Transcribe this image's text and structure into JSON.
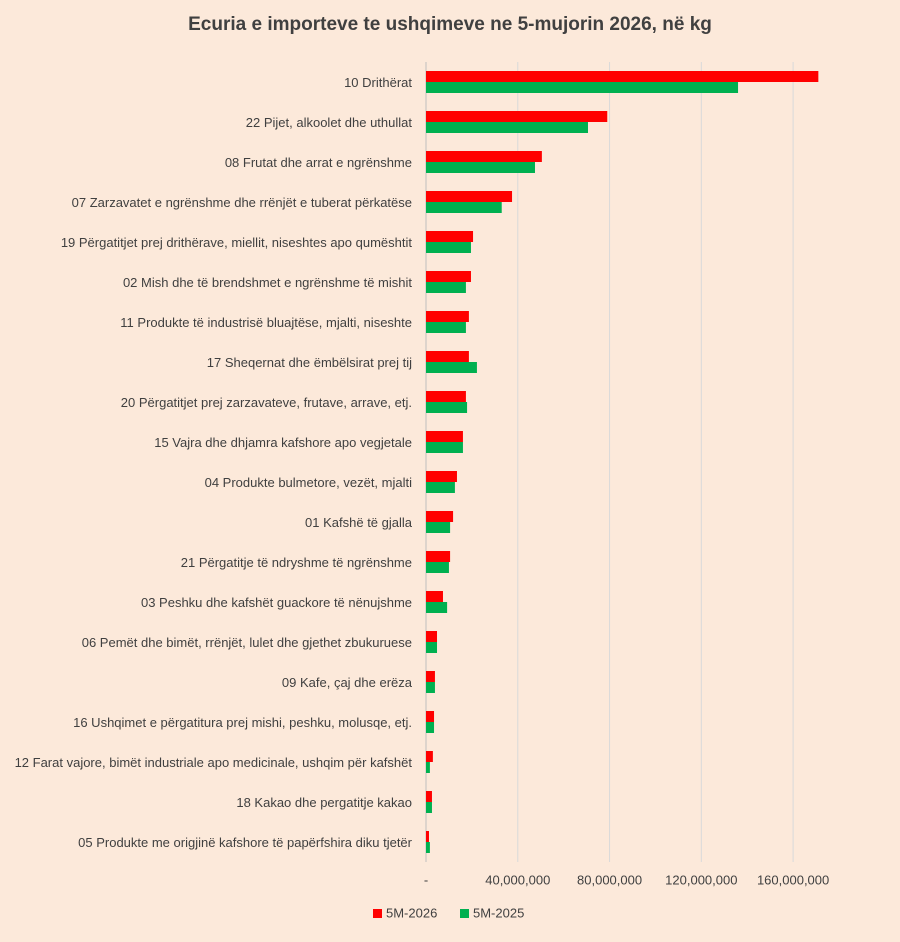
{
  "chart_data": {
    "type": "hbar",
    "title": "Ecuria e importeve te ushqimeve ne 5-mujorin 2026, në kg",
    "categories": [
      "10 Drithërat",
      "22 Pijet, alkoolet dhe uthullat",
      "08 Frutat dhe arrat e ngrënshme",
      "07 Zarzavatet e ngrënshme dhe rrënjët e tuberat përkatëse",
      "19 Përgatitjet prej drithërave, miellit, niseshtes apo qumështit",
      "02 Mish dhe të brendshmet e ngrënshme të mishit",
      "11 Produkte të industrisë bluajtëse, mjalti, niseshte",
      "17 Sheqernat dhe ëmbëlsirat prej tij",
      "20 Përgatitjet prej zarzavateve, frutave, arrave, etj.",
      "15 Vajra dhe dhjamra kafshore apo vegjetale",
      "04 Produkte bulmetore, vezët, mjalti",
      "01 Kafshë të gjalla",
      "21 Përgatitje të ndryshme të ngrënshme",
      "03 Peshku dhe kafshët guackore të nënujshme",
      "06 Pemët dhe bimët, rrënjët, lulet dhe gjethet zbukuruese",
      "09 Kafe, çaj dhe erëza",
      "16 Ushqimet e përgatitura prej mishi, peshku, molusqe, etj.",
      "12 Farat vajore, bimët industriale apo medicinale, ushqim për kafshët",
      "18 Kakao dhe pergatitje kakao",
      "05 Produkte me origjinë kafshore të papërfshira diku tjetër"
    ],
    "series": [
      {
        "name": "5M-2026",
        "color": "#ff0000",
        "values": [
          171000000,
          79000000,
          50500000,
          37500000,
          20500000,
          19600000,
          18700000,
          18700000,
          17400000,
          16100000,
          13500000,
          11800000,
          10500000,
          7400000,
          4800000,
          3900000,
          3500000,
          3000000,
          2600000,
          1300000
        ]
      },
      {
        "name": "5M-2025",
        "color": "#00b050",
        "values": [
          136000000,
          70600000,
          47500000,
          33000000,
          19600000,
          17400000,
          17400000,
          22200000,
          17900000,
          16100000,
          12600000,
          10500000,
          10000000,
          9200000,
          4800000,
          3900000,
          3500000,
          1700000,
          2600000,
          1700000
        ]
      }
    ],
    "xlim": [
      0,
      180000000
    ],
    "xticks": [
      {
        "value": 0,
        "label": "-"
      },
      {
        "value": 40000000,
        "label": "40,000,000"
      },
      {
        "value": 80000000,
        "label": "80,000,000"
      },
      {
        "value": 120000000,
        "label": "120,000,000"
      },
      {
        "value": 160000000,
        "label": "160,000,000"
      }
    ],
    "grid": true
  }
}
